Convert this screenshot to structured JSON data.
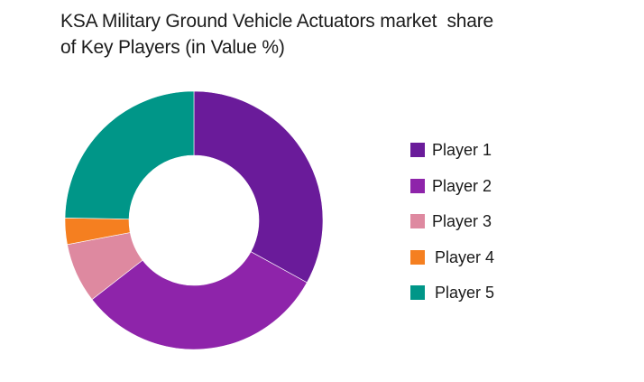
{
  "title": {
    "line1": "KSA Military Ground Vehicle Actuators market  share",
    "line2": "of Key Players (in Value %)"
  },
  "chart_data": {
    "type": "pie",
    "subtype": "donut",
    "title": "KSA Military Ground Vehicle Actuators market share of Key Players (in Value %)",
    "categories": [
      "Player 1",
      "Player 2",
      "Player 3",
      "Player 4",
      "Player 5"
    ],
    "values": [
      33,
      31.5,
      7.5,
      3.3,
      24.7
    ],
    "colors": [
      "#6A1B9A",
      "#8E24AA",
      "#DE89A0",
      "#F57F20",
      "#009688"
    ],
    "start_angle_deg": 0,
    "direction": "clockwise",
    "legend_position": "right",
    "data_labels": false
  },
  "legend": {
    "items": [
      {
        "label": "Player 1",
        "color": "#6A1B9A"
      },
      {
        "label": "Player 2",
        "color": "#8E24AA"
      },
      {
        "label": "Player 3",
        "color": "#DE89A0"
      },
      {
        "label": "Player 4",
        "color": "#F57F20"
      },
      {
        "label": "Player 5",
        "color": "#009688"
      }
    ]
  }
}
